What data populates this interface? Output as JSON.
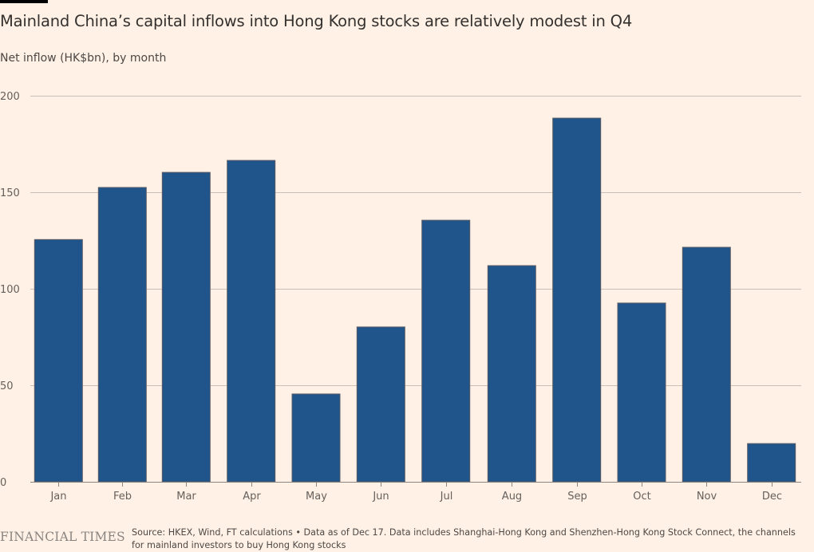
{
  "header": {
    "title": "Mainland China’s capital inflows into Hong Kong stocks are relatively modest in Q4",
    "subtitle": "Net inflow (HK$bn), by month"
  },
  "footer": {
    "logo": "FINANCIAL TIMES",
    "source": "Source: HKEX, Wind, FT calculations • Data as of Dec 17. Data includes Shanghai-Hong Kong and Shenzhen-Hong Kong Stock Connect, the channels for mainland investors to buy Hong Kong stocks"
  },
  "colors": {
    "background": "#fff1e5",
    "bar": "#1f558b",
    "bar_outline": "#5a5a66",
    "gridline": "#c8bfb8",
    "axis": "#8c8580",
    "text": "#33302e"
  },
  "chart_data": {
    "type": "bar",
    "title": "Mainland China’s capital inflows into Hong Kong stocks are relatively modest in Q4",
    "subtitle": "Net inflow (HK$bn), by month",
    "xlabel": "",
    "ylabel": "Net inflow (HK$bn)",
    "categories": [
      "Jan",
      "Feb",
      "Mar",
      "Apr",
      "May",
      "Jun",
      "Jul",
      "Aug",
      "Sep",
      "Oct",
      "Nov",
      "Dec"
    ],
    "values": [
      125.5,
      152.5,
      160.3,
      166.5,
      45.5,
      80.2,
      135.5,
      112.0,
      188.4,
      92.6,
      121.5,
      19.8
    ],
    "ylim": [
      0,
      200
    ],
    "yticks": [
      0,
      50,
      100,
      150,
      200
    ],
    "grid": true,
    "legend": "none"
  }
}
